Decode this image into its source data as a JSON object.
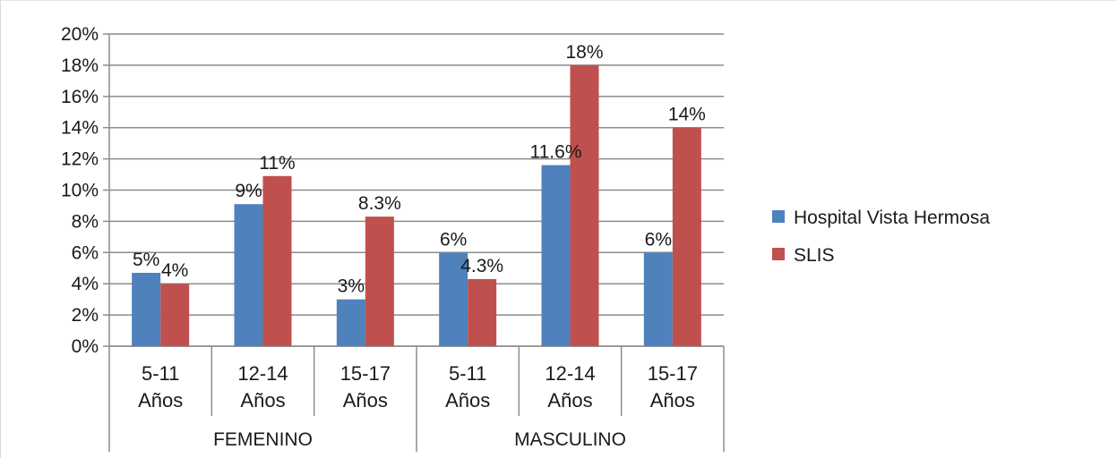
{
  "chart_data": {
    "type": "bar",
    "title": "",
    "xlabel": "",
    "ylabel": "",
    "ylim": [
      0,
      20
    ],
    "y_ticks": [
      "0%",
      "2%",
      "4%",
      "6%",
      "8%",
      "10%",
      "12%",
      "14%",
      "16%",
      "18%",
      "20%"
    ],
    "grid": true,
    "legend_position": "right",
    "groups": [
      {
        "label": "FEMENINO",
        "categories": [
          [
            "5-11",
            "Años"
          ],
          [
            "12-14",
            "Años"
          ],
          [
            "15-17",
            "Años"
          ]
        ]
      },
      {
        "label": "MASCULINO",
        "categories": [
          [
            "5-11",
            "Años"
          ],
          [
            "12-14",
            "Años"
          ],
          [
            "15-17",
            "Años"
          ]
        ]
      }
    ],
    "series": [
      {
        "name": "Hospital Vista Hermosa",
        "color": "#4f81bd",
        "values": [
          4.7,
          9.1,
          3.0,
          6.0,
          11.6,
          6.0
        ],
        "labels": [
          "5%",
          "9%",
          "3%",
          "6%",
          "11.6%",
          "6%"
        ]
      },
      {
        "name": "SLIS",
        "color": "#c0504d",
        "values": [
          4.0,
          10.9,
          8.3,
          4.3,
          18.0,
          14.0
        ],
        "labels": [
          "4%",
          "11%",
          "8.3%",
          "4.3%",
          "18%",
          "14%"
        ]
      }
    ]
  }
}
